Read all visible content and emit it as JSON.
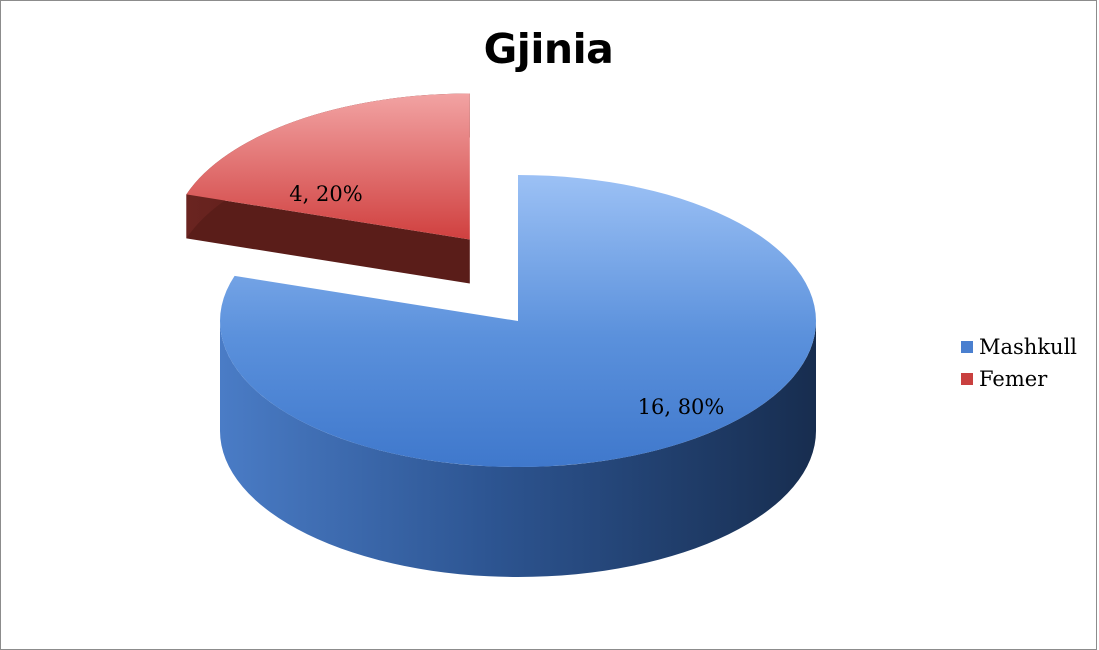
{
  "chart_data": {
    "type": "pie",
    "title": "Gjinia",
    "slices": [
      {
        "name": "Mashkull",
        "value": 16,
        "percent": 80,
        "label": "16, 80%",
        "color": "#4a7fcf"
      },
      {
        "name": "Femer",
        "value": 4,
        "percent": 20,
        "label": "4, 20%",
        "color": "#c9403f"
      }
    ],
    "legend_position": "right",
    "style": "3d-exploded"
  }
}
